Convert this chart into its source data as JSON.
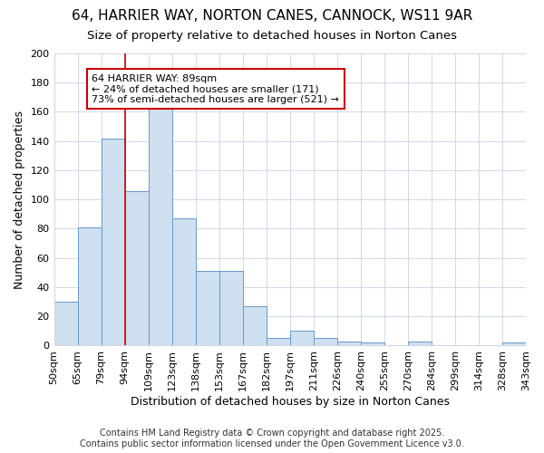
{
  "title": "64, HARRIER WAY, NORTON CANES, CANNOCK, WS11 9AR",
  "subtitle": "Size of property relative to detached houses in Norton Canes",
  "xlabel": "Distribution of detached houses by size in Norton Canes",
  "ylabel": "Number of detached properties",
  "categories": [
    "50sqm",
    "65sqm",
    "79sqm",
    "94sqm",
    "109sqm",
    "123sqm",
    "138sqm",
    "153sqm",
    "167sqm",
    "182sqm",
    "197sqm",
    "211sqm",
    "226sqm",
    "240sqm",
    "255sqm",
    "270sqm",
    "284sqm",
    "299sqm",
    "314sqm",
    "328sqm",
    "343sqm"
  ],
  "values": [
    30,
    81,
    142,
    106,
    165,
    87,
    51,
    51,
    27,
    5,
    10,
    5,
    3,
    2,
    0,
    3,
    0,
    0,
    0,
    2
  ],
  "bar_color": "#cfe0f0",
  "bar_edge_color": "#6699cc",
  "bar_edge_width": 0.7,
  "grid_color": "#d0d8e8",
  "background_color": "#ffffff",
  "red_line_x": 3.0,
  "annotation_text": "64 HARRIER WAY: 89sqm\n← 24% of detached houses are smaller (171)\n73% of semi-detached houses are larger (521) →",
  "annotation_box_color": "#cc0000",
  "ylim": [
    0,
    200
  ],
  "yticks": [
    0,
    20,
    40,
    60,
    80,
    100,
    120,
    140,
    160,
    180,
    200
  ],
  "footer_line1": "Contains HM Land Registry data © Crown copyright and database right 2025.",
  "footer_line2": "Contains public sector information licensed under the Open Government Licence v3.0.",
  "title_fontsize": 11,
  "subtitle_fontsize": 9.5,
  "axis_label_fontsize": 9,
  "tick_fontsize": 8,
  "annotation_fontsize": 8,
  "footer_fontsize": 7
}
